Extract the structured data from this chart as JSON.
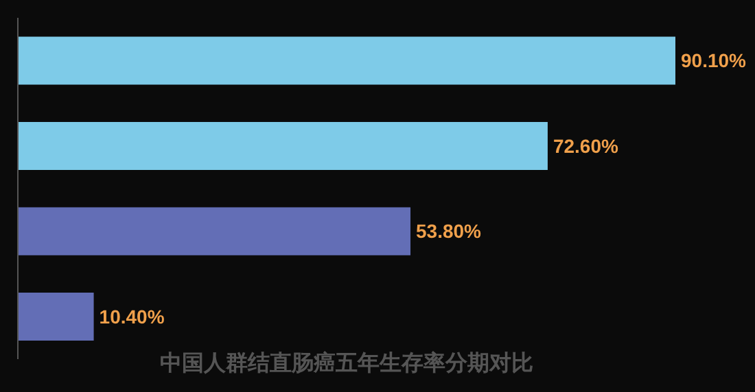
{
  "chart_data": {
    "type": "bar",
    "orientation": "horizontal",
    "title": "中国人群结直肠癌五年生存率分期对比",
    "categories": [
      null,
      null,
      null,
      null
    ],
    "values": [
      90.1,
      72.6,
      53.8,
      10.4
    ],
    "colors": [
      "#7ecbe8",
      "#7ecbe8",
      "#636eb6",
      "#636eb6"
    ],
    "value_labels": [
      "90.10%",
      "72.60%",
      "53.80%",
      "10.40%"
    ]
  }
}
